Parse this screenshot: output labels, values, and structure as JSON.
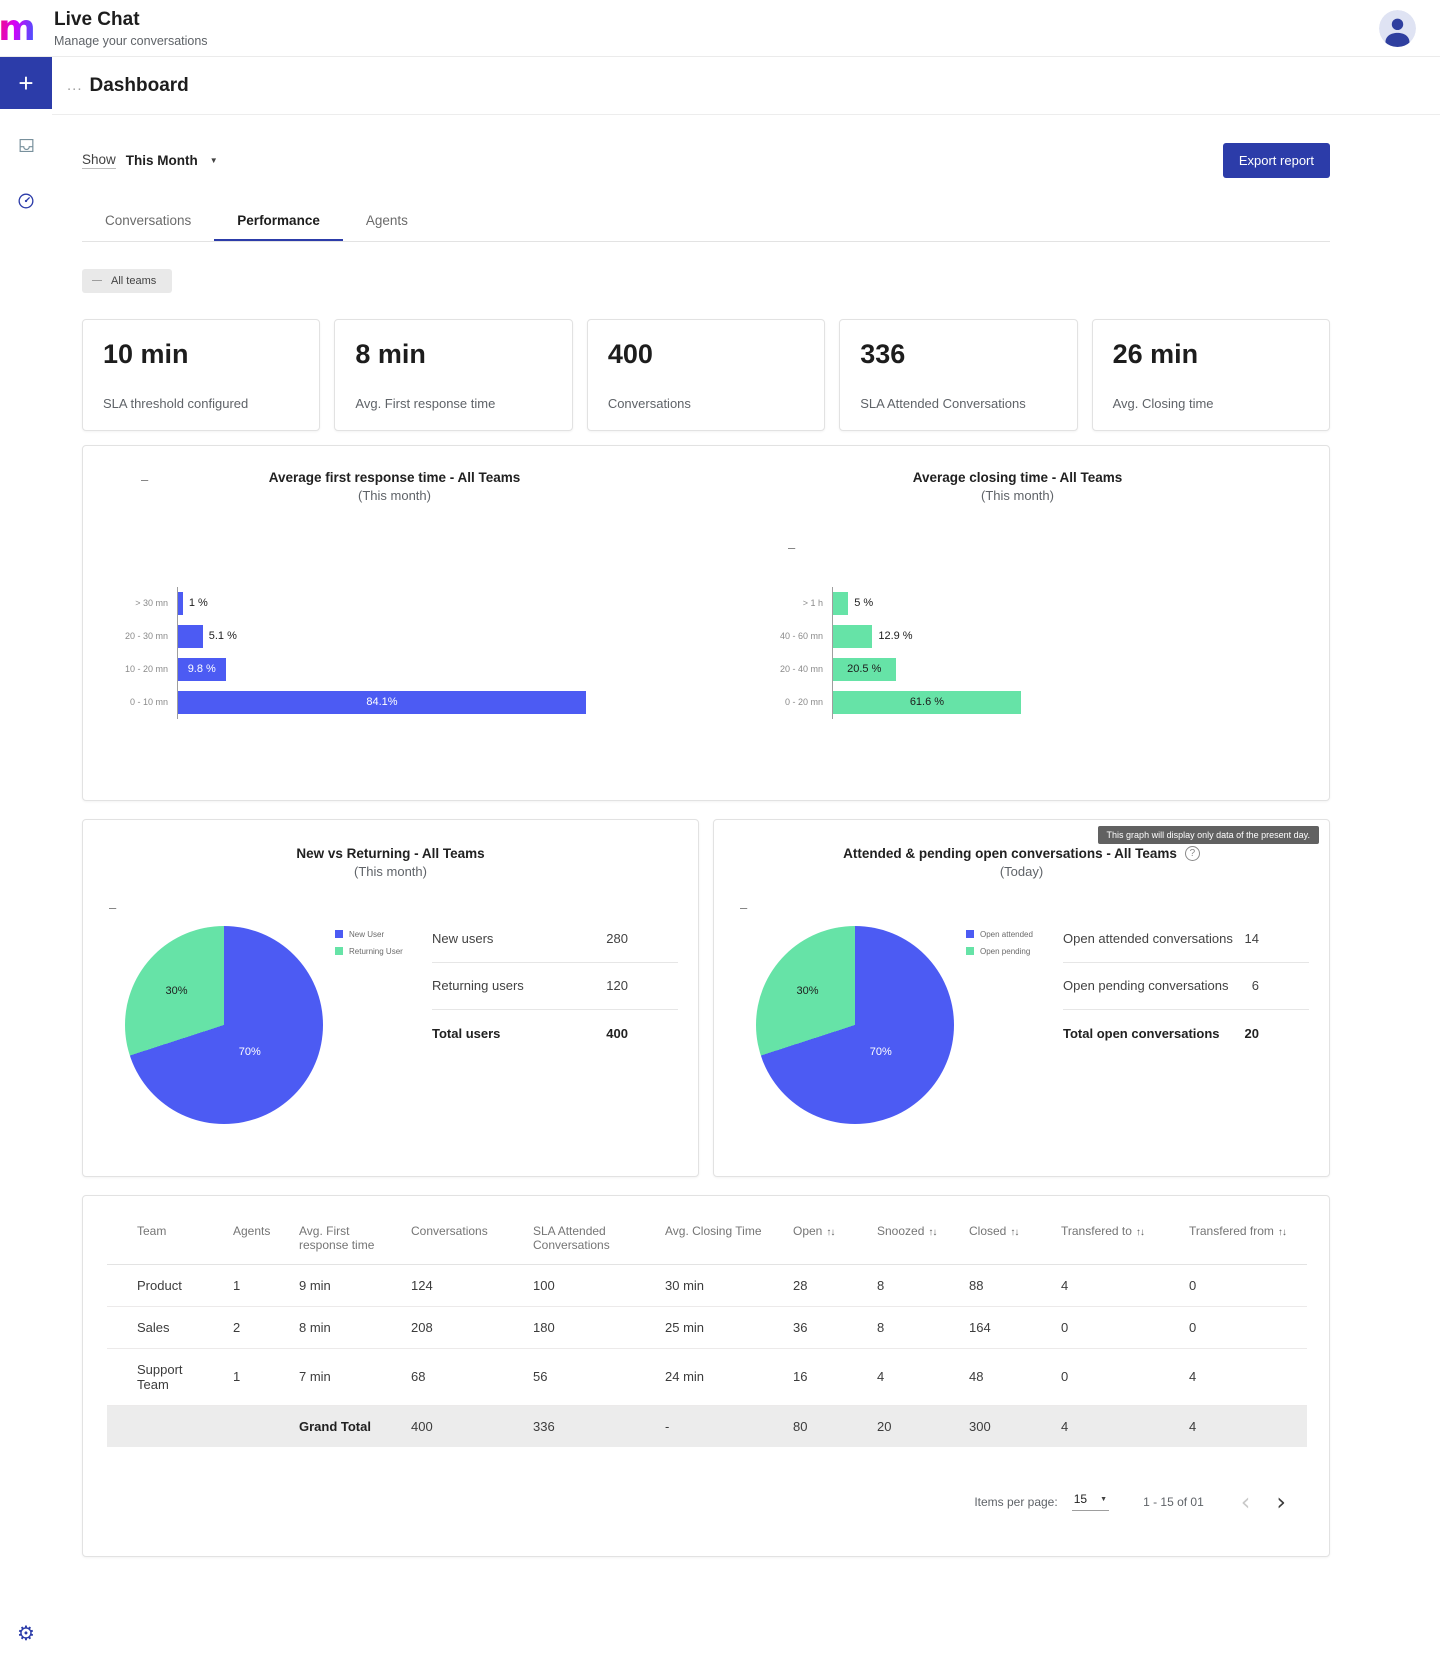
{
  "colors": {
    "primary": "#2c3ca9",
    "chart_blue": "#4c5bf3",
    "chart_green": "#66e3a7"
  },
  "header": {
    "logo": "m",
    "title": "Live Chat",
    "subtitle": "Manage your conversations"
  },
  "breadcrumb": {
    "ellipsis": "...",
    "title": "Dashboard"
  },
  "toolbar": {
    "show_label": "Show",
    "period_value": "This Month",
    "export_label": "Export report"
  },
  "tabs": {
    "conversations": "Conversations",
    "performance": "Performance",
    "agents": "Agents"
  },
  "team_filter": "All teams",
  "icons": {
    "plus": "+",
    "sort": "↑↓",
    "caret": "▼",
    "chevron_left": "‹",
    "chevron_right": "›",
    "help": "?",
    "gear": "⚙",
    "dash": "–"
  },
  "stats": [
    {
      "value": "10 min",
      "label": "SLA threshold configured"
    },
    {
      "value": "8 min",
      "label": "Avg. First response time"
    },
    {
      "value": "400",
      "label": "Conversations"
    },
    {
      "value": "336",
      "label": "SLA Attended Conversations"
    },
    {
      "value": "26 min",
      "label": "Avg. Closing time"
    }
  ],
  "chart_data": [
    {
      "type": "bar",
      "orientation": "horizontal",
      "title": "Average first response time - All Teams",
      "subtitle": "(This month)",
      "categories": [
        "> 30 mn",
        "20 - 30 mn",
        "10 - 20 mn",
        "0 - 10 mn"
      ],
      "values": [
        1,
        5.1,
        9.8,
        84.1
      ],
      "labels": [
        "1 %",
        "5.1 %",
        "9.8 %",
        "84.1%"
      ],
      "color": "#4c5bf3",
      "xlim": [
        0,
        100
      ],
      "grid": false
    },
    {
      "type": "bar",
      "orientation": "horizontal",
      "title": "Average closing time - All Teams",
      "subtitle": "(This month)",
      "categories": [
        "> 1 h",
        "40 - 60 mn",
        "20 - 40 mn",
        "0 - 20 mn"
      ],
      "values": [
        5,
        12.9,
        20.5,
        61.6
      ],
      "labels": [
        "5 %",
        "12.9 %",
        "20.5 %",
        "61.6 %"
      ],
      "color": "#66e3a7",
      "xlim": [
        0,
        100
      ],
      "grid": false
    },
    {
      "type": "pie",
      "title": "New vs Returning - All Teams",
      "subtitle": "(This month)",
      "legend_position": "right",
      "slices": [
        {
          "label": "New User",
          "value": 70,
          "display": "70%",
          "color": "#4c5bf3"
        },
        {
          "label": "Returning User",
          "value": 30,
          "display": "30%",
          "color": "#66e3a7"
        }
      ],
      "stats": [
        {
          "label": "New users",
          "value": "280"
        },
        {
          "label": "Returning users",
          "value": "120"
        },
        {
          "label": "Total users",
          "value": "400"
        }
      ]
    },
    {
      "type": "pie",
      "title": "Attended & pending open conversations - All Teams",
      "subtitle": "(Today)",
      "tooltip": "This graph will display only data of the present day.",
      "legend_position": "right",
      "slices": [
        {
          "label": "Open attended",
          "value": 70,
          "display": "70%",
          "color": "#4c5bf3"
        },
        {
          "label": "Open pending",
          "value": 30,
          "display": "30%",
          "color": "#66e3a7"
        }
      ],
      "stats": [
        {
          "label": "Open attended conversations",
          "value": "14"
        },
        {
          "label": "Open pending conversations",
          "value": "6"
        },
        {
          "label": "Total open conversations",
          "value": "20"
        }
      ]
    }
  ],
  "table": {
    "headers": [
      {
        "label": "Team",
        "sortable": false
      },
      {
        "label": "Agents",
        "sortable": false
      },
      {
        "label": "Avg. First response time",
        "sortable": false
      },
      {
        "label": "Conversations",
        "sortable": false
      },
      {
        "label": "SLA Attended Conversations",
        "sortable": false
      },
      {
        "label": "Avg. Closing Time",
        "sortable": false
      },
      {
        "label": "Open",
        "sortable": true
      },
      {
        "label": "Snoozed",
        "sortable": true
      },
      {
        "label": "Closed",
        "sortable": true
      },
      {
        "label": "Transfered to",
        "sortable": true
      },
      {
        "label": "Transfered from",
        "sortable": true
      }
    ],
    "rows": [
      [
        "Product",
        "1",
        "9 min",
        "124",
        "100",
        "30 min",
        "28",
        "8",
        "88",
        "4",
        "0"
      ],
      [
        "Sales",
        "2",
        "8 min",
        "208",
        "180",
        "25 min",
        "36",
        "8",
        "164",
        "0",
        "0"
      ],
      [
        "Support Team",
        "1",
        "7 min",
        "68",
        "56",
        "24 min",
        "16",
        "4",
        "48",
        "0",
        "4"
      ]
    ],
    "total_row": [
      "",
      "",
      "Grand Total",
      "400",
      "336",
      "-",
      "80",
      "20",
      "300",
      "4",
      "4"
    ]
  },
  "pagination": {
    "items_per_page_label": "Items per page:",
    "items_per_page_value": "15",
    "range_text": "1 - 15 of 01"
  }
}
